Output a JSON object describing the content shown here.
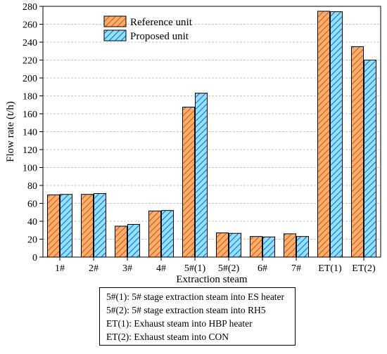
{
  "chart_data": {
    "type": "bar",
    "xlabel": "Extraction steam",
    "ylabel": "Flow rate (t/h)",
    "ylim": [
      0,
      280
    ],
    "yticks": [
      0,
      20,
      40,
      60,
      80,
      100,
      120,
      140,
      160,
      180,
      200,
      220,
      240,
      260,
      280
    ],
    "grid": true,
    "legend_position": "top-left",
    "categories": [
      "1#",
      "2#",
      "3#",
      "4#",
      "5#(1)",
      "5#(2)",
      "6#",
      "7#",
      "ET(1)",
      "ET(2)"
    ],
    "series": [
      {
        "name": "Reference unit",
        "color": "#f4a460",
        "hatch": "#e0501e",
        "values": [
          69.5,
          70,
          34.5,
          51.5,
          167.5,
          27,
          23,
          26,
          274.5,
          235
        ]
      },
      {
        "name": "Proposed unit",
        "color": "#7fdcff",
        "hatch": "#2f6fd6",
        "values": [
          70,
          71,
          36.5,
          52,
          183,
          26.5,
          22.5,
          23,
          274,
          220
        ]
      }
    ]
  },
  "notes": [
    "5#(1): 5# stage extraction steam into ES heater",
    "5#(2): 5# stage extraction steam into RH5",
    "ET(1): Exhaust steam into HBP heater",
    "ET(2): Exhaust steam into CON"
  ]
}
